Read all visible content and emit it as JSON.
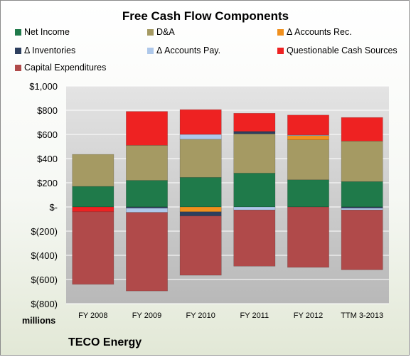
{
  "chart_data": {
    "type": "bar",
    "stacked": true,
    "title": "Free Cash Flow Components",
    "units_label": "millions",
    "footer": "TECO Energy",
    "categories": [
      "FY 2008",
      "FY 2009",
      "FY 2010",
      "FY 2011",
      "FY 2012",
      "TTM 3-2013"
    ],
    "ylim": [
      -800,
      1000
    ],
    "yticks": [
      1000,
      800,
      600,
      400,
      200,
      0,
      -200,
      -400,
      -600,
      -800
    ],
    "ytick_labels": [
      "$1,000",
      "$800",
      "$600",
      "$400",
      "$200",
      "$-",
      "$(200)",
      "$(400)",
      "$(600)",
      "$(800)"
    ],
    "grid": true,
    "legend_position": "top",
    "series": [
      {
        "name": "Net Income",
        "color": "#1f7a4a",
        "values": [
          170,
          220,
          245,
          280,
          225,
          210
        ]
      },
      {
        "name": "D&A",
        "color": "#a59a63",
        "values": [
          265,
          290,
          315,
          325,
          330,
          335
        ]
      },
      {
        "name": "Δ Accounts Rec.",
        "color": "#f0901e",
        "values": [
          0,
          0,
          -40,
          0,
          35,
          0
        ]
      },
      {
        "name": "Δ Inventories",
        "color": "#2d3f5e",
        "values": [
          0,
          -10,
          -35,
          20,
          0,
          -10
        ]
      },
      {
        "name": "Δ Accounts Pay.",
        "color": "#aec8ea",
        "values": [
          0,
          -35,
          40,
          -25,
          5,
          -15
        ]
      },
      {
        "name": "Questionable Cash Sources",
        "color": "#ee2222",
        "values": [
          -40,
          280,
          205,
          150,
          165,
          195
        ]
      },
      {
        "name": "Capital Expenditures",
        "color": "#b04a4a",
        "values": [
          -600,
          -650,
          -490,
          -465,
          -500,
          -495
        ]
      }
    ]
  }
}
